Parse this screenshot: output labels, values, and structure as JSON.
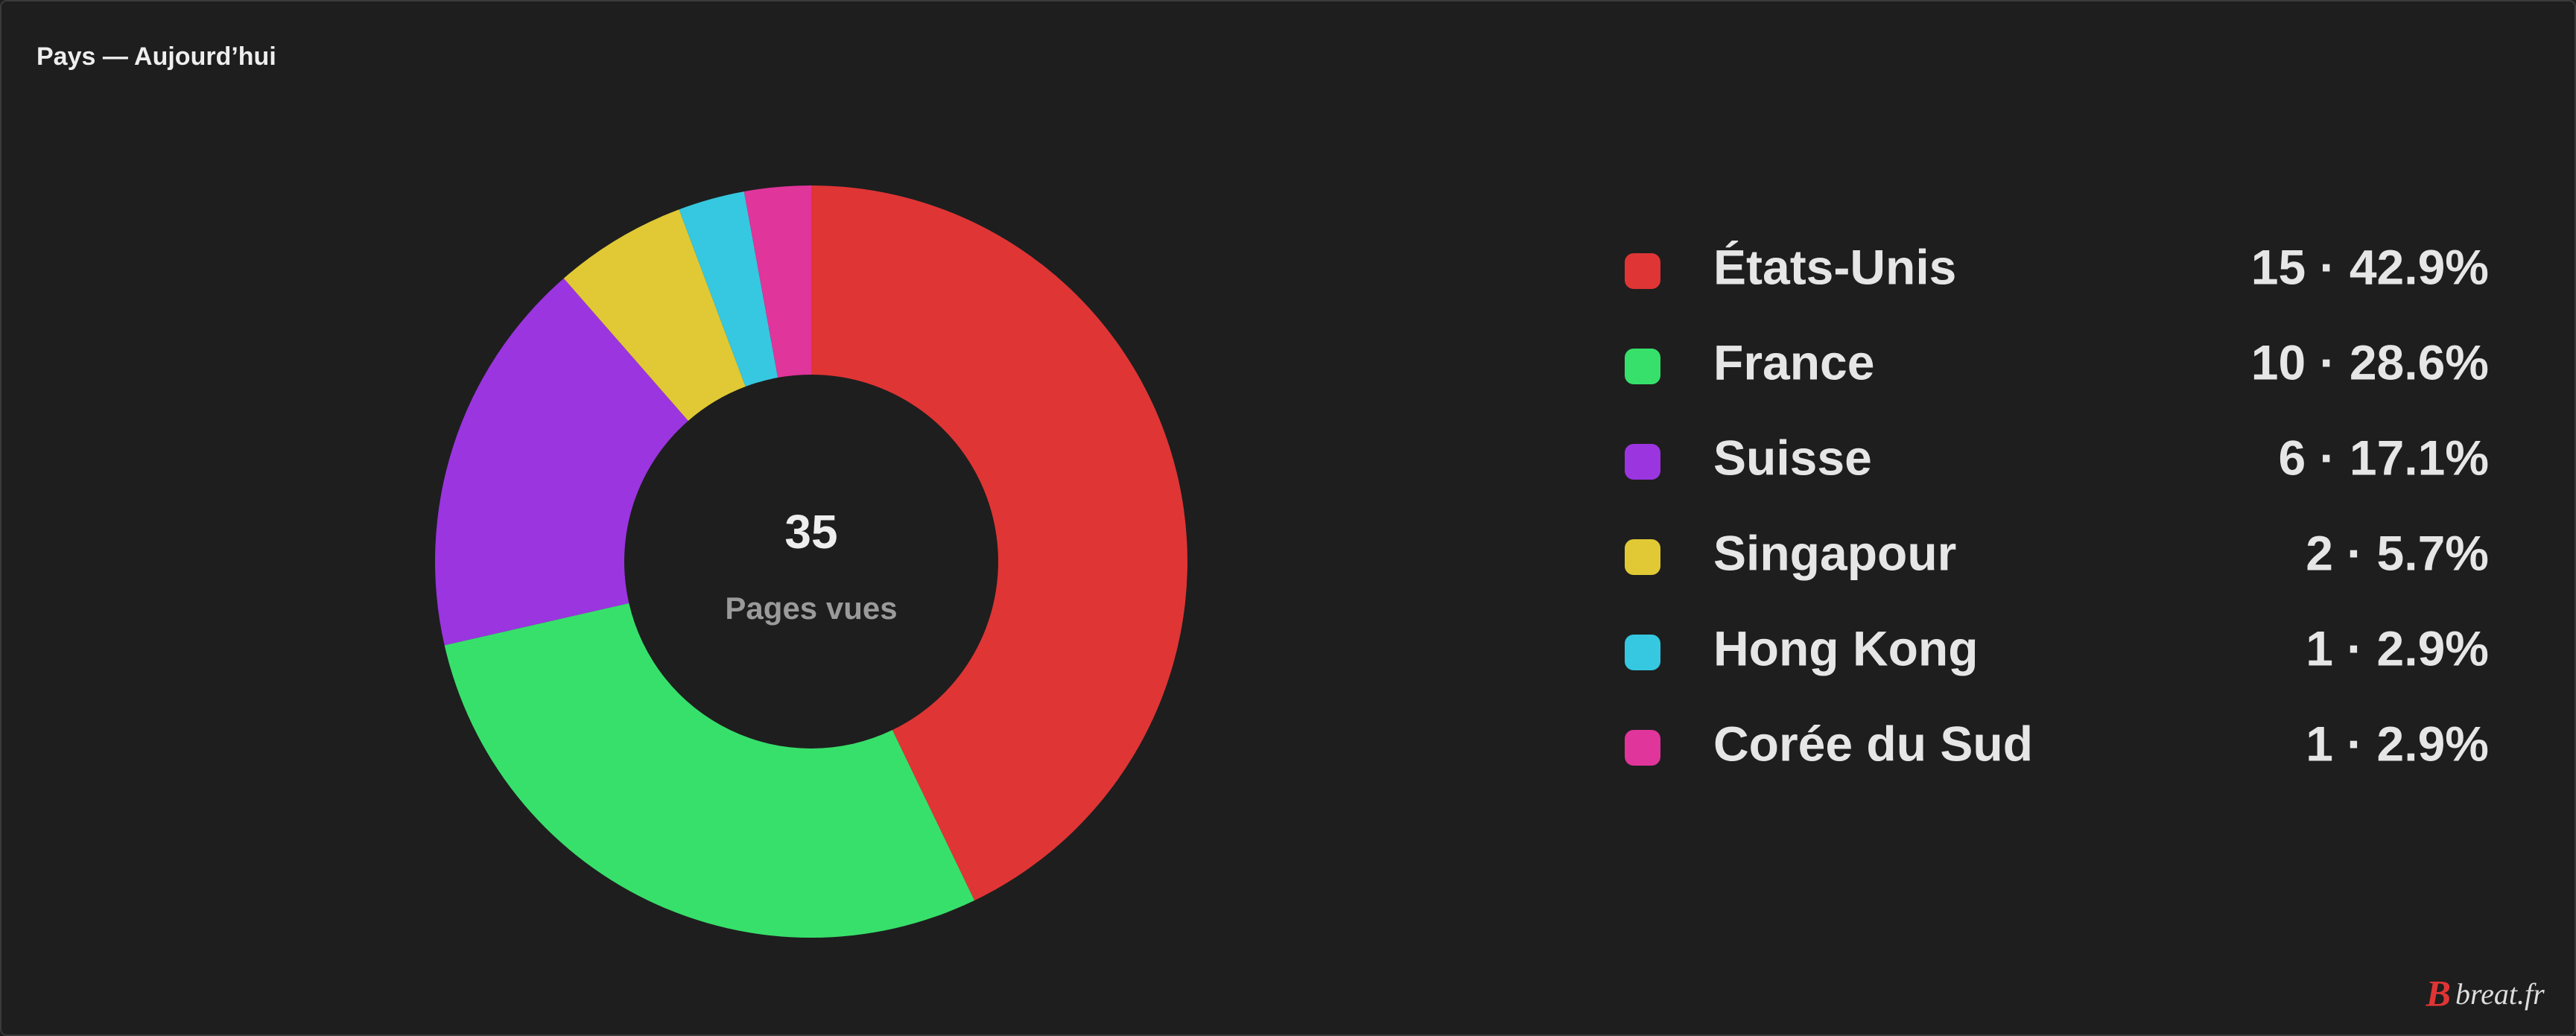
{
  "chart_data": {
    "type": "donut",
    "title": "Pays — Aujourd’hui",
    "categories": [
      "États-Unis",
      "France",
      "Suisse",
      "Singapour",
      "Hong Kong",
      "Corée du Sud"
    ],
    "values": [
      15,
      10,
      6,
      2,
      1,
      1
    ],
    "value_labels": [
      "15 · 42.9%",
      "10 · 28.6%",
      "6 · 17.1%",
      "2 · 5.7%",
      "1 · 2.9%",
      "1 · 2.9%"
    ],
    "colors": [
      "#e03535",
      "#37e06b",
      "#9b35e0",
      "#e0c935",
      "#35c8e0",
      "#e0359b"
    ],
    "center_value": 35,
    "center_label": "Pages vues",
    "watermark": {
      "logo": "B",
      "text": "breat.fr"
    }
  }
}
